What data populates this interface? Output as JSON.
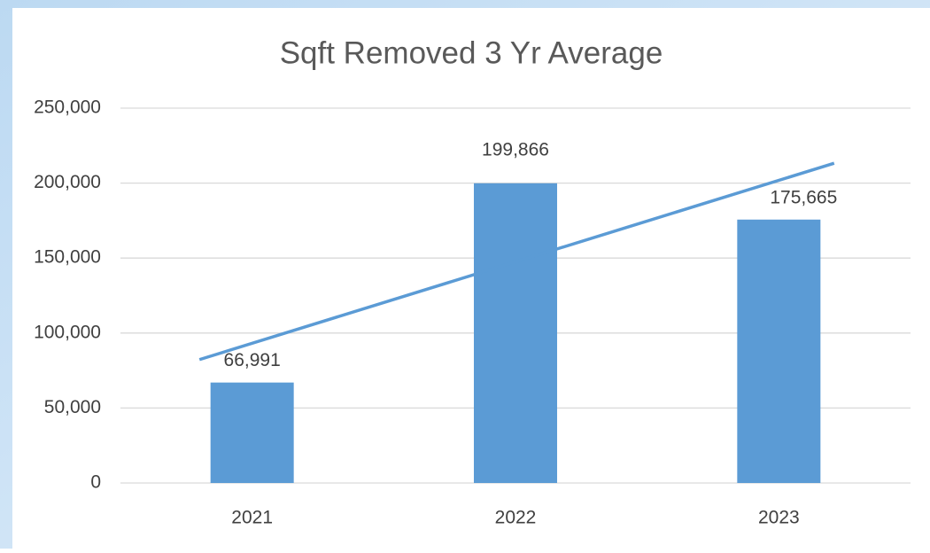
{
  "chart_data": {
    "type": "bar",
    "title": "Sqft Removed 3 Yr Average",
    "categories": [
      "2021",
      "2022",
      "2023"
    ],
    "values": [
      66991,
      199866,
      175665
    ],
    "value_labels": [
      "66,991",
      "199,866",
      "175,665"
    ],
    "color": "#5b9bd5",
    "trendline": "linear",
    "ylim": [
      0,
      250000
    ],
    "yticks": [
      0,
      {
        "value": 50000,
        "label": "50,000"
      },
      {
        "value": 100000,
        "label": "100,000"
      },
      {
        "value": 150000,
        "label": "150,000"
      },
      {
        "value": 200000,
        "label": "200,000"
      },
      {
        "value": 250000,
        "label": "250,000"
      }
    ],
    "grid": true
  }
}
